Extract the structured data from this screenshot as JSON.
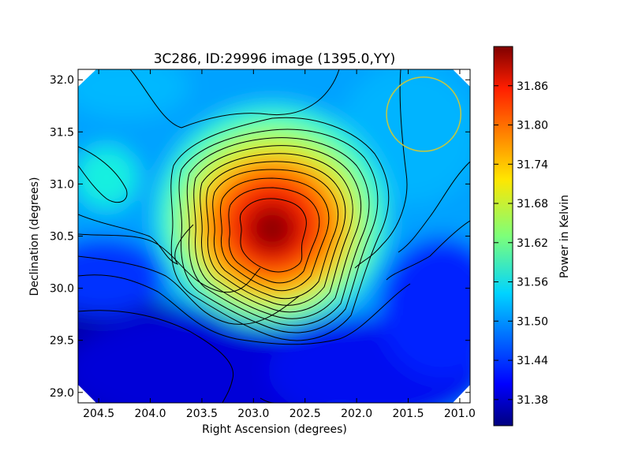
{
  "chart_data": {
    "type": "heatmap",
    "title": "3C286, ID:29996 image (1395.0,YY)",
    "xlabel": "Right Ascension (degrees)",
    "ylabel": "Declination (degrees)",
    "colorbar_label": "Power in Kelvin",
    "xlim": [
      204.7,
      200.9
    ],
    "ylim": [
      28.9,
      32.1
    ],
    "x_ticks": [
      "204.5",
      "204.0",
      "203.5",
      "203.0",
      "202.5",
      "202.0",
      "201.5",
      "201.0"
    ],
    "y_ticks": [
      "32.0",
      "31.5",
      "31.0",
      "30.5",
      "30.0",
      "29.5",
      "29.0"
    ],
    "color_range": [
      31.34,
      31.92
    ],
    "colorbar_ticks": [
      "31.86",
      "31.80",
      "31.74",
      "31.68",
      "31.62",
      "31.56",
      "31.50",
      "31.44",
      "31.38"
    ],
    "colormap": "jet",
    "contour_color": "#000000",
    "beam_circle": {
      "ra": 201.35,
      "dec": 31.67,
      "radius_deg": 0.36,
      "color": "#c8c83c"
    },
    "peak": {
      "ra": 202.75,
      "dec": 30.55,
      "value": 31.91
    }
  }
}
